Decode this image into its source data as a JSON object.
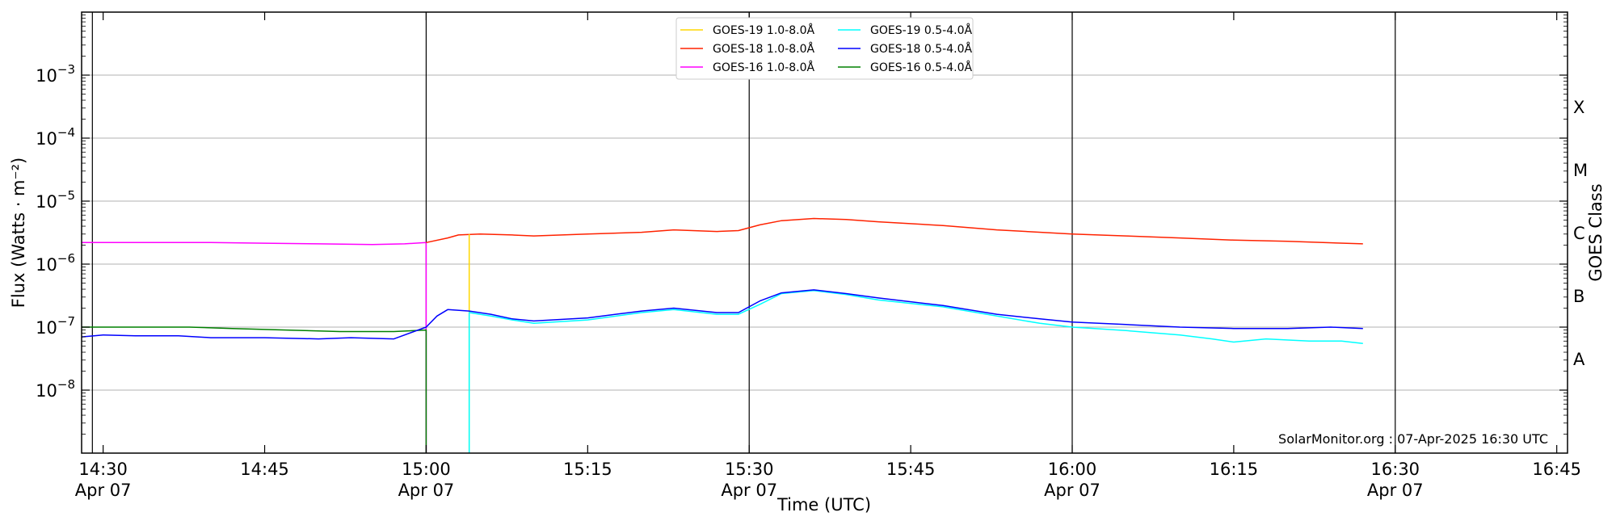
{
  "chart_data": {
    "type": "line",
    "ylabel": "Flux (Watts · m⁻²)",
    "xlabel": "Time (UTC)",
    "right_label": "GOES Class",
    "credit": "SolarMonitor.org : 07-Apr-2025 16:30 UTC",
    "yscale": "log",
    "ylim": [
      1e-09,
      0.01
    ],
    "xlim": [
      "14:28",
      "16:46"
    ],
    "y_ticks": [
      {
        "value": 1e-08,
        "mant": "10",
        "exp": "−8"
      },
      {
        "value": 1e-07,
        "mant": "10",
        "exp": "−7"
      },
      {
        "value": 1e-06,
        "mant": "10",
        "exp": "−6"
      },
      {
        "value": 1e-05,
        "mant": "10",
        "exp": "−5"
      },
      {
        "value": 0.0001,
        "mant": "10",
        "exp": "−4"
      },
      {
        "value": 0.001,
        "mant": "10",
        "exp": "−3"
      }
    ],
    "x_ticks": [
      {
        "time": "14:30",
        "label": "14:30",
        "sub": "Apr 07"
      },
      {
        "time": "14:45",
        "label": "14:45",
        "sub": ""
      },
      {
        "time": "15:00",
        "label": "15:00",
        "sub": "Apr 07"
      },
      {
        "time": "15:15",
        "label": "15:15",
        "sub": ""
      },
      {
        "time": "15:30",
        "label": "15:30",
        "sub": "Apr 07"
      },
      {
        "time": "15:45",
        "label": "15:45",
        "sub": ""
      },
      {
        "time": "16:00",
        "label": "16:00",
        "sub": "Apr 07"
      },
      {
        "time": "16:15",
        "label": "16:15",
        "sub": ""
      },
      {
        "time": "16:30",
        "label": "16:30",
        "sub": "Apr 07"
      },
      {
        "time": "16:45",
        "label": "16:45",
        "sub": ""
      }
    ],
    "vertical_lines": [
      "14:29",
      "15:00",
      "15:30",
      "16:00",
      "16:30"
    ],
    "goes_classes": [
      {
        "label": "A",
        "value": 3.16e-08
      },
      {
        "label": "B",
        "value": 3.16e-07
      },
      {
        "label": "C",
        "value": 3.16e-06
      },
      {
        "label": "M",
        "value": 3.16e-05
      },
      {
        "label": "X",
        "value": 0.000316
      }
    ],
    "legend": [
      {
        "label": "GOES-19 1.0-8.0Å",
        "color": "#ffd700"
      },
      {
        "label": "GOES-18 1.0-8.0Å",
        "color": "#ff2200"
      },
      {
        "label": "GOES-16 1.0-8.0Å",
        "color": "#ff00ff"
      },
      {
        "label": "GOES-19 0.5-4.0Å",
        "color": "#00ffff"
      },
      {
        "label": "GOES-18 0.5-4.0Å",
        "color": "#0000ff"
      },
      {
        "label": "GOES-16 0.5-4.0Å",
        "color": "#008000"
      }
    ],
    "series": [
      {
        "name": "GOES-16 1.0-8.0Å",
        "color": "#ff00ff",
        "points": [
          [
            "14:28",
            2.2e-06
          ],
          [
            "14:35",
            2.2e-06
          ],
          [
            "14:40",
            2.2e-06
          ],
          [
            "14:45",
            2.15e-06
          ],
          [
            "14:50",
            2.1e-06
          ],
          [
            "14:55",
            2.05e-06
          ],
          [
            "14:58",
            2.1e-06
          ],
          [
            "15:00",
            2.2e-06
          ],
          [
            "15:00",
            1e-09
          ]
        ]
      },
      {
        "name": "GOES-16 0.5-4.0Å",
        "color": "#008000",
        "points": [
          [
            "14:28",
            1e-07
          ],
          [
            "14:33",
            1e-07
          ],
          [
            "14:38",
            1e-07
          ],
          [
            "14:42",
            9.5e-08
          ],
          [
            "14:47",
            9e-08
          ],
          [
            "14:52",
            8.5e-08
          ],
          [
            "14:57",
            8.5e-08
          ],
          [
            "15:00",
            9e-08
          ],
          [
            "15:00",
            1e-09
          ]
        ]
      },
      {
        "name": "GOES-18 1.0-8.0Å",
        "color": "#ff2200",
        "points": [
          [
            "15:00",
            2.2e-06
          ],
          [
            "15:02",
            2.6e-06
          ],
          [
            "15:03",
            2.9e-06
          ],
          [
            "15:05",
            3e-06
          ],
          [
            "15:08",
            2.9e-06
          ],
          [
            "15:10",
            2.8e-06
          ],
          [
            "15:15",
            3e-06
          ],
          [
            "15:20",
            3.2e-06
          ],
          [
            "15:23",
            3.5e-06
          ],
          [
            "15:27",
            3.3e-06
          ],
          [
            "15:29",
            3.4e-06
          ],
          [
            "15:31",
            4.2e-06
          ],
          [
            "15:33",
            4.9e-06
          ],
          [
            "15:36",
            5.3e-06
          ],
          [
            "15:39",
            5.1e-06
          ],
          [
            "15:42",
            4.7e-06
          ],
          [
            "15:48",
            4.1e-06
          ],
          [
            "15:53",
            3.5e-06
          ],
          [
            "16:00",
            3e-06
          ],
          [
            "16:05",
            2.8e-06
          ],
          [
            "16:10",
            2.6e-06
          ],
          [
            "16:15",
            2.4e-06
          ],
          [
            "16:20",
            2.3e-06
          ],
          [
            "16:27",
            2.1e-06
          ]
        ]
      },
      {
        "name": "GOES-19 1.0-8.0Å",
        "color": "#ffd700",
        "points": [
          [
            "15:04",
            1e-09
          ],
          [
            "15:04",
            3e-06
          ]
        ]
      },
      {
        "name": "GOES-19 0.5-4.0Å",
        "color": "#00ffff",
        "points": [
          [
            "15:04",
            1e-09
          ],
          [
            "15:04",
            1.7e-07
          ],
          [
            "15:06",
            1.5e-07
          ],
          [
            "15:08",
            1.3e-07
          ],
          [
            "15:10",
            1.15e-07
          ],
          [
            "15:15",
            1.3e-07
          ],
          [
            "15:20",
            1.7e-07
          ],
          [
            "15:23",
            1.9e-07
          ],
          [
            "15:27",
            1.6e-07
          ],
          [
            "15:29",
            1.6e-07
          ],
          [
            "15:31",
            2.3e-07
          ],
          [
            "15:33",
            3.4e-07
          ],
          [
            "15:36",
            3.8e-07
          ],
          [
            "15:39",
            3.3e-07
          ],
          [
            "15:42",
            2.7e-07
          ],
          [
            "15:48",
            2.1e-07
          ],
          [
            "15:53",
            1.5e-07
          ],
          [
            "15:57",
            1.15e-07
          ],
          [
            "16:00",
            1e-07
          ],
          [
            "16:05",
            8.8e-08
          ],
          [
            "16:10",
            7.5e-08
          ],
          [
            "16:13",
            6.5e-08
          ],
          [
            "16:15",
            5.8e-08
          ],
          [
            "16:18",
            6.5e-08
          ],
          [
            "16:22",
            6e-08
          ],
          [
            "16:25",
            6e-08
          ],
          [
            "16:27",
            5.5e-08
          ]
        ]
      },
      {
        "name": "GOES-18 0.5-4.0Å",
        "color": "#0000ff",
        "points": [
          [
            "14:28",
            7e-08
          ],
          [
            "14:30",
            7.5e-08
          ],
          [
            "14:33",
            7.3e-08
          ],
          [
            "14:37",
            7.3e-08
          ],
          [
            "14:40",
            6.8e-08
          ],
          [
            "14:45",
            6.8e-08
          ],
          [
            "14:50",
            6.5e-08
          ],
          [
            "14:53",
            6.8e-08
          ],
          [
            "14:57",
            6.5e-08
          ],
          [
            "15:00",
            1e-07
          ],
          [
            "15:01",
            1.5e-07
          ],
          [
            "15:02",
            1.9e-07
          ],
          [
            "15:04",
            1.8e-07
          ],
          [
            "15:06",
            1.6e-07
          ],
          [
            "15:08",
            1.35e-07
          ],
          [
            "15:10",
            1.25e-07
          ],
          [
            "15:15",
            1.4e-07
          ],
          [
            "15:20",
            1.8e-07
          ],
          [
            "15:23",
            2e-07
          ],
          [
            "15:27",
            1.7e-07
          ],
          [
            "15:29",
            1.7e-07
          ],
          [
            "15:31",
            2.6e-07
          ],
          [
            "15:33",
            3.5e-07
          ],
          [
            "15:36",
            3.9e-07
          ],
          [
            "15:39",
            3.4e-07
          ],
          [
            "15:42",
            2.9e-07
          ],
          [
            "15:48",
            2.2e-07
          ],
          [
            "15:53",
            1.6e-07
          ],
          [
            "15:57",
            1.35e-07
          ],
          [
            "16:00",
            1.2e-07
          ],
          [
            "16:05",
            1.1e-07
          ],
          [
            "16:10",
            1e-07
          ],
          [
            "16:15",
            9.5e-08
          ],
          [
            "16:20",
            9.5e-08
          ],
          [
            "16:24",
            1e-07
          ],
          [
            "16:27",
            9.5e-08
          ]
        ]
      }
    ]
  }
}
